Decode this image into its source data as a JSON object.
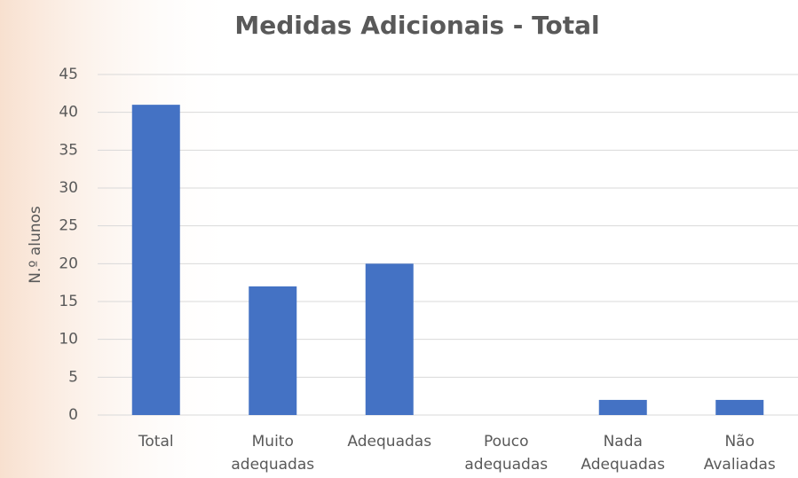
{
  "chart_data": {
    "type": "bar",
    "title": "Medidas Adicionais - Total",
    "y_label": "N.º alunos",
    "categories": [
      "Total",
      "Muito adequadas",
      "Adequadas",
      "Pouco adequadas",
      "Nada Adequadas",
      "Não Avaliadas"
    ],
    "values": [
      41,
      17,
      20,
      0,
      2,
      2
    ],
    "color": "#4472c4",
    "ylim": [
      0,
      45
    ],
    "yticks": [
      0,
      5,
      10,
      15,
      20,
      25,
      30,
      35,
      40,
      45
    ],
    "grid": true
  }
}
